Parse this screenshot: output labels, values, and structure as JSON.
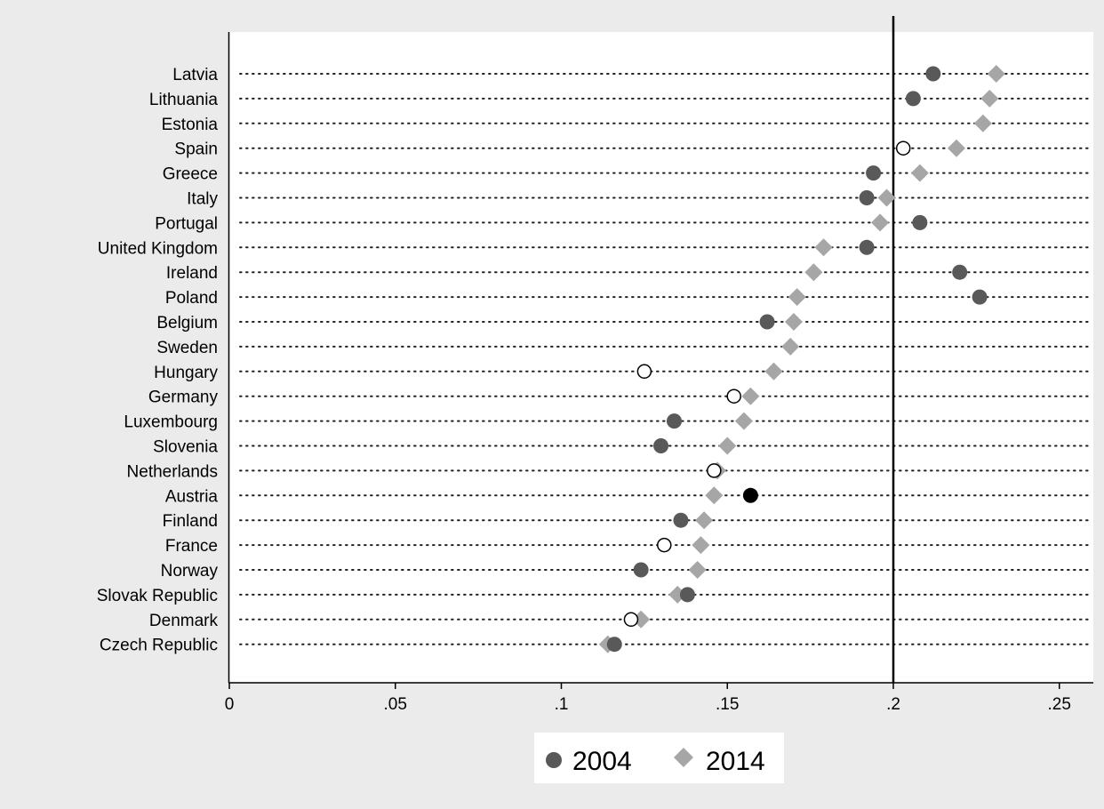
{
  "chart_data": {
    "type": "scatter",
    "title": "",
    "xlabel": "",
    "ylabel": "",
    "xlim": [
      0,
      0.26
    ],
    "x_ticks": [
      {
        "value": 0,
        "label": "0"
      },
      {
        "value": 0.05,
        "label": ".05"
      },
      {
        "value": 0.1,
        "label": ".1"
      },
      {
        "value": 0.15,
        "label": ".15"
      },
      {
        "value": 0.2,
        "label": ".2"
      },
      {
        "value": 0.25,
        "label": ".25"
      }
    ],
    "reference_line_x": 0.2,
    "grid": "dotted horizontal lines per country",
    "legend_position": "bottom-center",
    "categories": [
      "Latvia",
      "Lithuania",
      "Estonia",
      "Spain",
      "Greece",
      "Italy",
      "Portugal",
      "United Kingdom",
      "Ireland",
      "Poland",
      "Belgium",
      "Sweden",
      "Hungary",
      "Germany",
      "Luxembourg",
      "Slovenia",
      "Netherlands",
      "Austria",
      "Finland",
      "France",
      "Norway",
      "Slovak Republic",
      "Denmark",
      "Czech Republic"
    ],
    "series": [
      {
        "name": "2004",
        "marker": "circle",
        "color": "#595959",
        "values": [
          0.212,
          0.206,
          null,
          0.203,
          0.194,
          0.192,
          0.208,
          0.192,
          0.22,
          0.226,
          0.162,
          null,
          0.125,
          0.152,
          0.134,
          0.13,
          0.146,
          0.157,
          0.136,
          0.131,
          0.124,
          0.138,
          0.121,
          0.116
        ],
        "styles": [
          "filled",
          "filled",
          "",
          "hollow",
          "filled",
          "filled",
          "filled",
          "filled",
          "filled",
          "filled",
          "filled",
          "",
          "hollow",
          "hollow",
          "filled",
          "filled",
          "hollow",
          "black",
          "filled",
          "hollow",
          "filled",
          "filled",
          "hollow",
          "filled"
        ]
      },
      {
        "name": "2014",
        "marker": "diamond",
        "color": "#a6a6a6",
        "values": [
          0.231,
          0.229,
          0.227,
          0.219,
          0.208,
          0.198,
          0.196,
          0.179,
          0.176,
          0.171,
          0.17,
          0.169,
          0.164,
          0.157,
          0.155,
          0.15,
          0.147,
          0.146,
          0.143,
          0.142,
          0.141,
          0.135,
          0.124,
          0.114
        ]
      }
    ]
  },
  "colors": {
    "background": "#ebebeb",
    "plot_background": "#ffffff",
    "series_2004": "#595959",
    "series_2004_highlight": "#000000",
    "series_2014": "#a6a6a6"
  }
}
